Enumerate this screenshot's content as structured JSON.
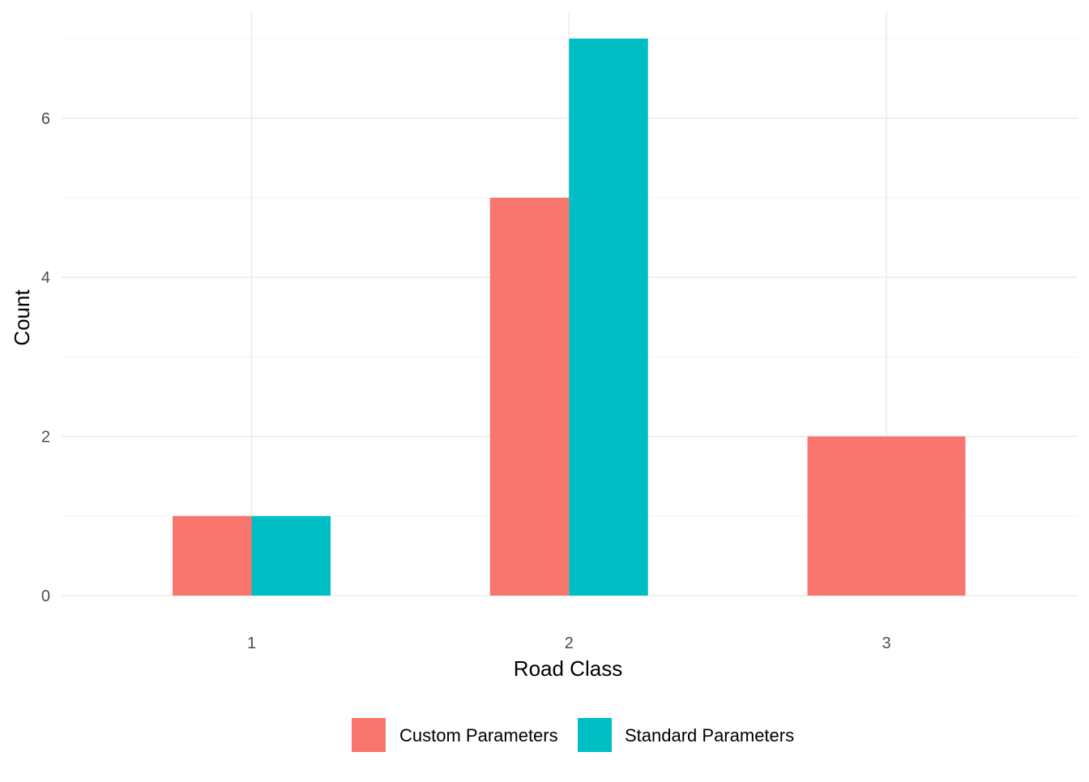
{
  "chart_data": {
    "type": "bar",
    "title": "",
    "xlabel": "Road Class",
    "ylabel": "Count",
    "categories": [
      "1",
      "2",
      "3"
    ],
    "series": [
      {
        "name": "Custom Parameters",
        "values": [
          1,
          5,
          2
        ],
        "color": "#F8766D"
      },
      {
        "name": "Standard Parameters",
        "values": [
          1,
          7,
          0
        ],
        "color": "#00BFC4"
      }
    ],
    "ylim": [
      0,
      7
    ],
    "yticks": [
      0,
      2,
      4,
      6
    ],
    "grid": true,
    "legend_position": "bottom",
    "background": "#ffffff"
  }
}
